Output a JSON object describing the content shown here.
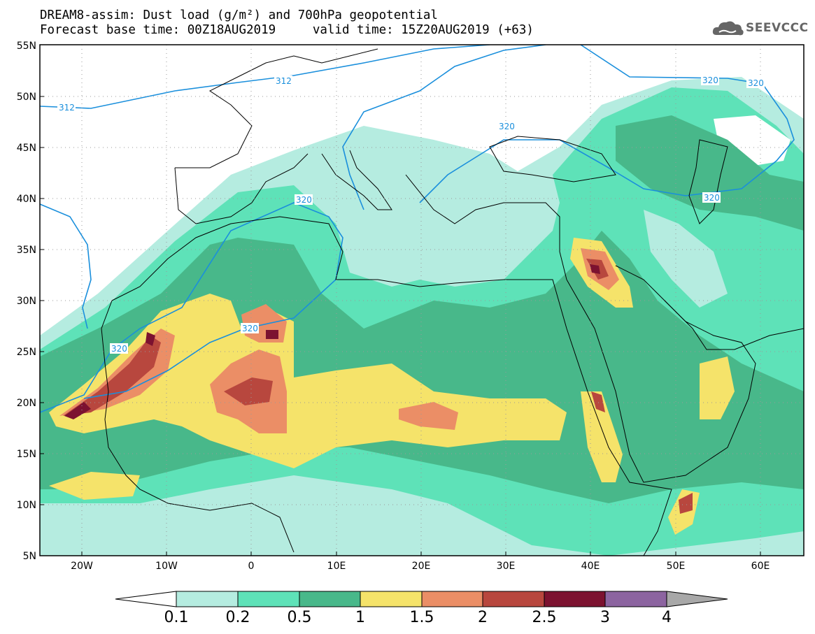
{
  "title": {
    "line1": "DREAM8-assim: Dust load (g/m²) and 700hPa geopotential",
    "line2": "Forecast base time: 00Z18AUG2019     valid time: 15Z20AUG2019 (+63)"
  },
  "logo": {
    "icon": "cloud-logo-icon",
    "text": "SEEVCCC"
  },
  "axes": {
    "lat_labels": [
      "55N",
      "50N",
      "45N",
      "40N",
      "35N",
      "30N",
      "25N",
      "20N",
      "15N",
      "10N",
      "5N"
    ],
    "lon_labels": [
      "20W",
      "10W",
      "0",
      "10E",
      "20E",
      "30E",
      "40E",
      "50E",
      "60E"
    ],
    "lon_range": [
      -25,
      65
    ],
    "lat_range": [
      5,
      55
    ],
    "grid": "dotted"
  },
  "contour_labels": {
    "c312a": "312",
    "c312b": "312",
    "c320a": "320",
    "c320b": "320",
    "c320c": "320",
    "c320d": "320",
    "c320e": "320",
    "c320f": "320",
    "c320g": "320"
  },
  "colorbar": {
    "ticks": [
      "0.1",
      "0.2",
      "0.5",
      "1",
      "1.5",
      "2",
      "2.5",
      "3",
      "4"
    ],
    "colors": [
      "#b5ece0",
      "#5ee2b8",
      "#48b88a",
      "#f5e36a",
      "#eb8e66",
      "#b8473e",
      "#7c1230",
      "#8c64a0"
    ],
    "under_color": "#ffffff",
    "over_color": "#a8a8a8",
    "contour_color": "#1a8fdc"
  }
}
